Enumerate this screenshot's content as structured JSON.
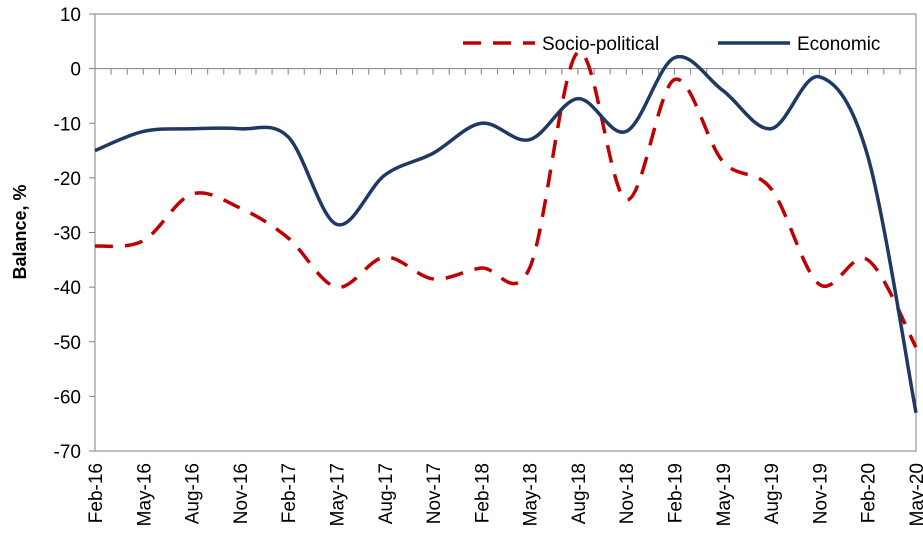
{
  "chart_data": {
    "type": "line",
    "ylabel": "Balance, %",
    "ylim": [
      -70,
      10
    ],
    "yticks": [
      10,
      0,
      -10,
      -20,
      -30,
      -40,
      -50,
      -60,
      -70
    ],
    "categories": [
      "Feb-16",
      "May-16",
      "Aug-16",
      "Nov-16",
      "Feb-17",
      "May-17",
      "Aug-17",
      "Nov-17",
      "Feb-18",
      "May-18",
      "Aug-18",
      "Nov-18",
      "Feb-19",
      "May-19",
      "Aug-19",
      "Nov-19",
      "Feb-20",
      "May-20"
    ],
    "series": [
      {
        "name": "Socio-political",
        "color": "#c00000",
        "dash": "dashed",
        "values": [
          -32.5,
          -31.5,
          -23,
          -25.5,
          -31,
          -40,
          -34.5,
          -38.5,
          -36.5,
          -36.5,
          3,
          -24,
          -2,
          -17,
          -22,
          -39.5,
          -35,
          -51
        ]
      },
      {
        "name": "Economic",
        "color": "#1f3864",
        "dash": "solid",
        "values": [
          -15,
          -11.5,
          -11,
          -11,
          -12.5,
          -28.5,
          -19.5,
          -15.5,
          -10,
          -13,
          -5.5,
          -11.5,
          2,
          -4,
          -11,
          -1.5,
          -16,
          -63
        ]
      }
    ],
    "grid": false,
    "legend_position": "top-right"
  }
}
